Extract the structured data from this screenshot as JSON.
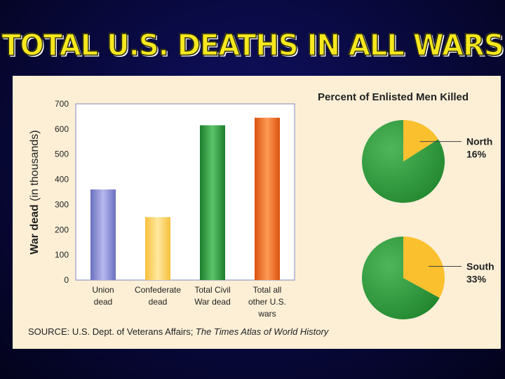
{
  "slide_title": "TOTAL U.S. DEATHS IN ALL WARS",
  "source": {
    "prefix": "SOURCE: U.S. Dept. of Veterans Affairs; ",
    "italic": "The Times Atlas of World History"
  },
  "chart_data": [
    {
      "type": "bar",
      "title": "",
      "ylabel_bold": "War dead",
      "ylabel_rest": " (in thousands)",
      "xlabel": "",
      "ylim": [
        0,
        700
      ],
      "yticks": [
        "0",
        "100",
        "200",
        "300",
        "400",
        "500",
        "600",
        "700"
      ],
      "categories": [
        [
          "Union",
          "dead"
        ],
        [
          "Confederate",
          "dead"
        ],
        [
          "Total Civil",
          "War dead"
        ],
        [
          "Total all",
          "other U.S.",
          "wars"
        ]
      ],
      "values": [
        360,
        250,
        615,
        645
      ],
      "colors": [
        "#8b8fd6",
        "#fcd35a",
        "#2f9e3e",
        "#f06d1e"
      ]
    },
    {
      "type": "pie",
      "title": "Percent of Enlisted Men Killed",
      "pies": [
        {
          "label": "North",
          "value_label": "16%",
          "value": 16
        },
        {
          "label": "South",
          "value_label": "33%",
          "value": 33
        }
      ],
      "colors": {
        "killed": "#fbc02d",
        "other": "#2e9a40"
      }
    }
  ]
}
